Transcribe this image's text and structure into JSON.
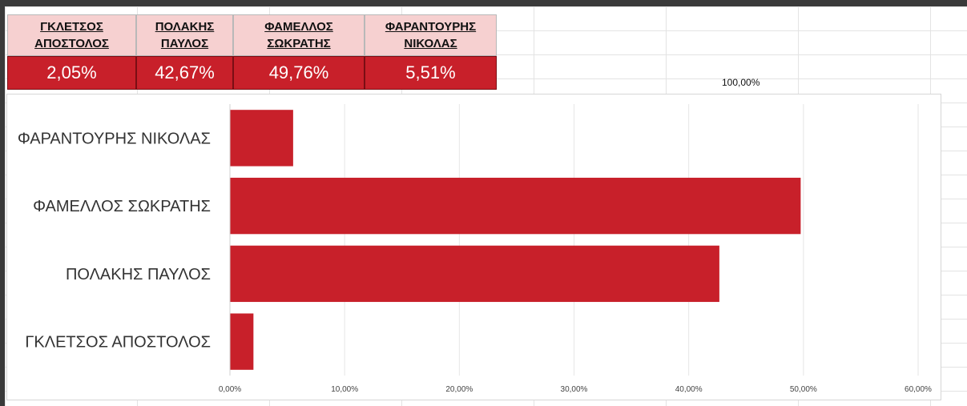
{
  "table": {
    "headers": [
      [
        "ΓΚΛΕΤΣΟΣ",
        "ΑΠΟΣΤΟΛΟΣ"
      ],
      [
        "ΠΟΛΑΚΗΣ",
        "ΠΑΥΛΟΣ"
      ],
      [
        "ΦΑΜΕΛΛΟΣ",
        "ΣΩΚΡΑΤΗΣ"
      ],
      [
        "ΦΑΡΑΝΤΟΥΡΗΣ",
        "ΝΙΚΟΛΑΣ"
      ]
    ],
    "values": [
      "2,05%",
      "42,67%",
      "49,76%",
      "5,51%"
    ]
  },
  "note_cell": "100,00%",
  "colors": {
    "bar": "#c8202a",
    "header_fill": "#f6d0d0",
    "value_fill": "#c8202a"
  },
  "chart_data": {
    "type": "bar",
    "orientation": "horizontal",
    "categories": [
      "ΦΑΡΑΝΤΟΥΡΗΣ ΝΙΚΟΛΑΣ",
      "ΦΑΜΕΛΛΟΣ ΣΩΚΡΑΤΗΣ",
      "ΠΟΛΑΚΗΣ ΠΑΥΛΟΣ",
      "ΓΚΛΕΤΣΟΣ ΑΠΟΣΤΟΛΟΣ"
    ],
    "values": [
      5.51,
      49.76,
      42.67,
      2.05
    ],
    "xlim": [
      0,
      60
    ],
    "xticks": [
      "0,00%",
      "10,00%",
      "20,00%",
      "30,00%",
      "40,00%",
      "50,00%",
      "60,00%"
    ],
    "grid": true,
    "legend": "none"
  }
}
